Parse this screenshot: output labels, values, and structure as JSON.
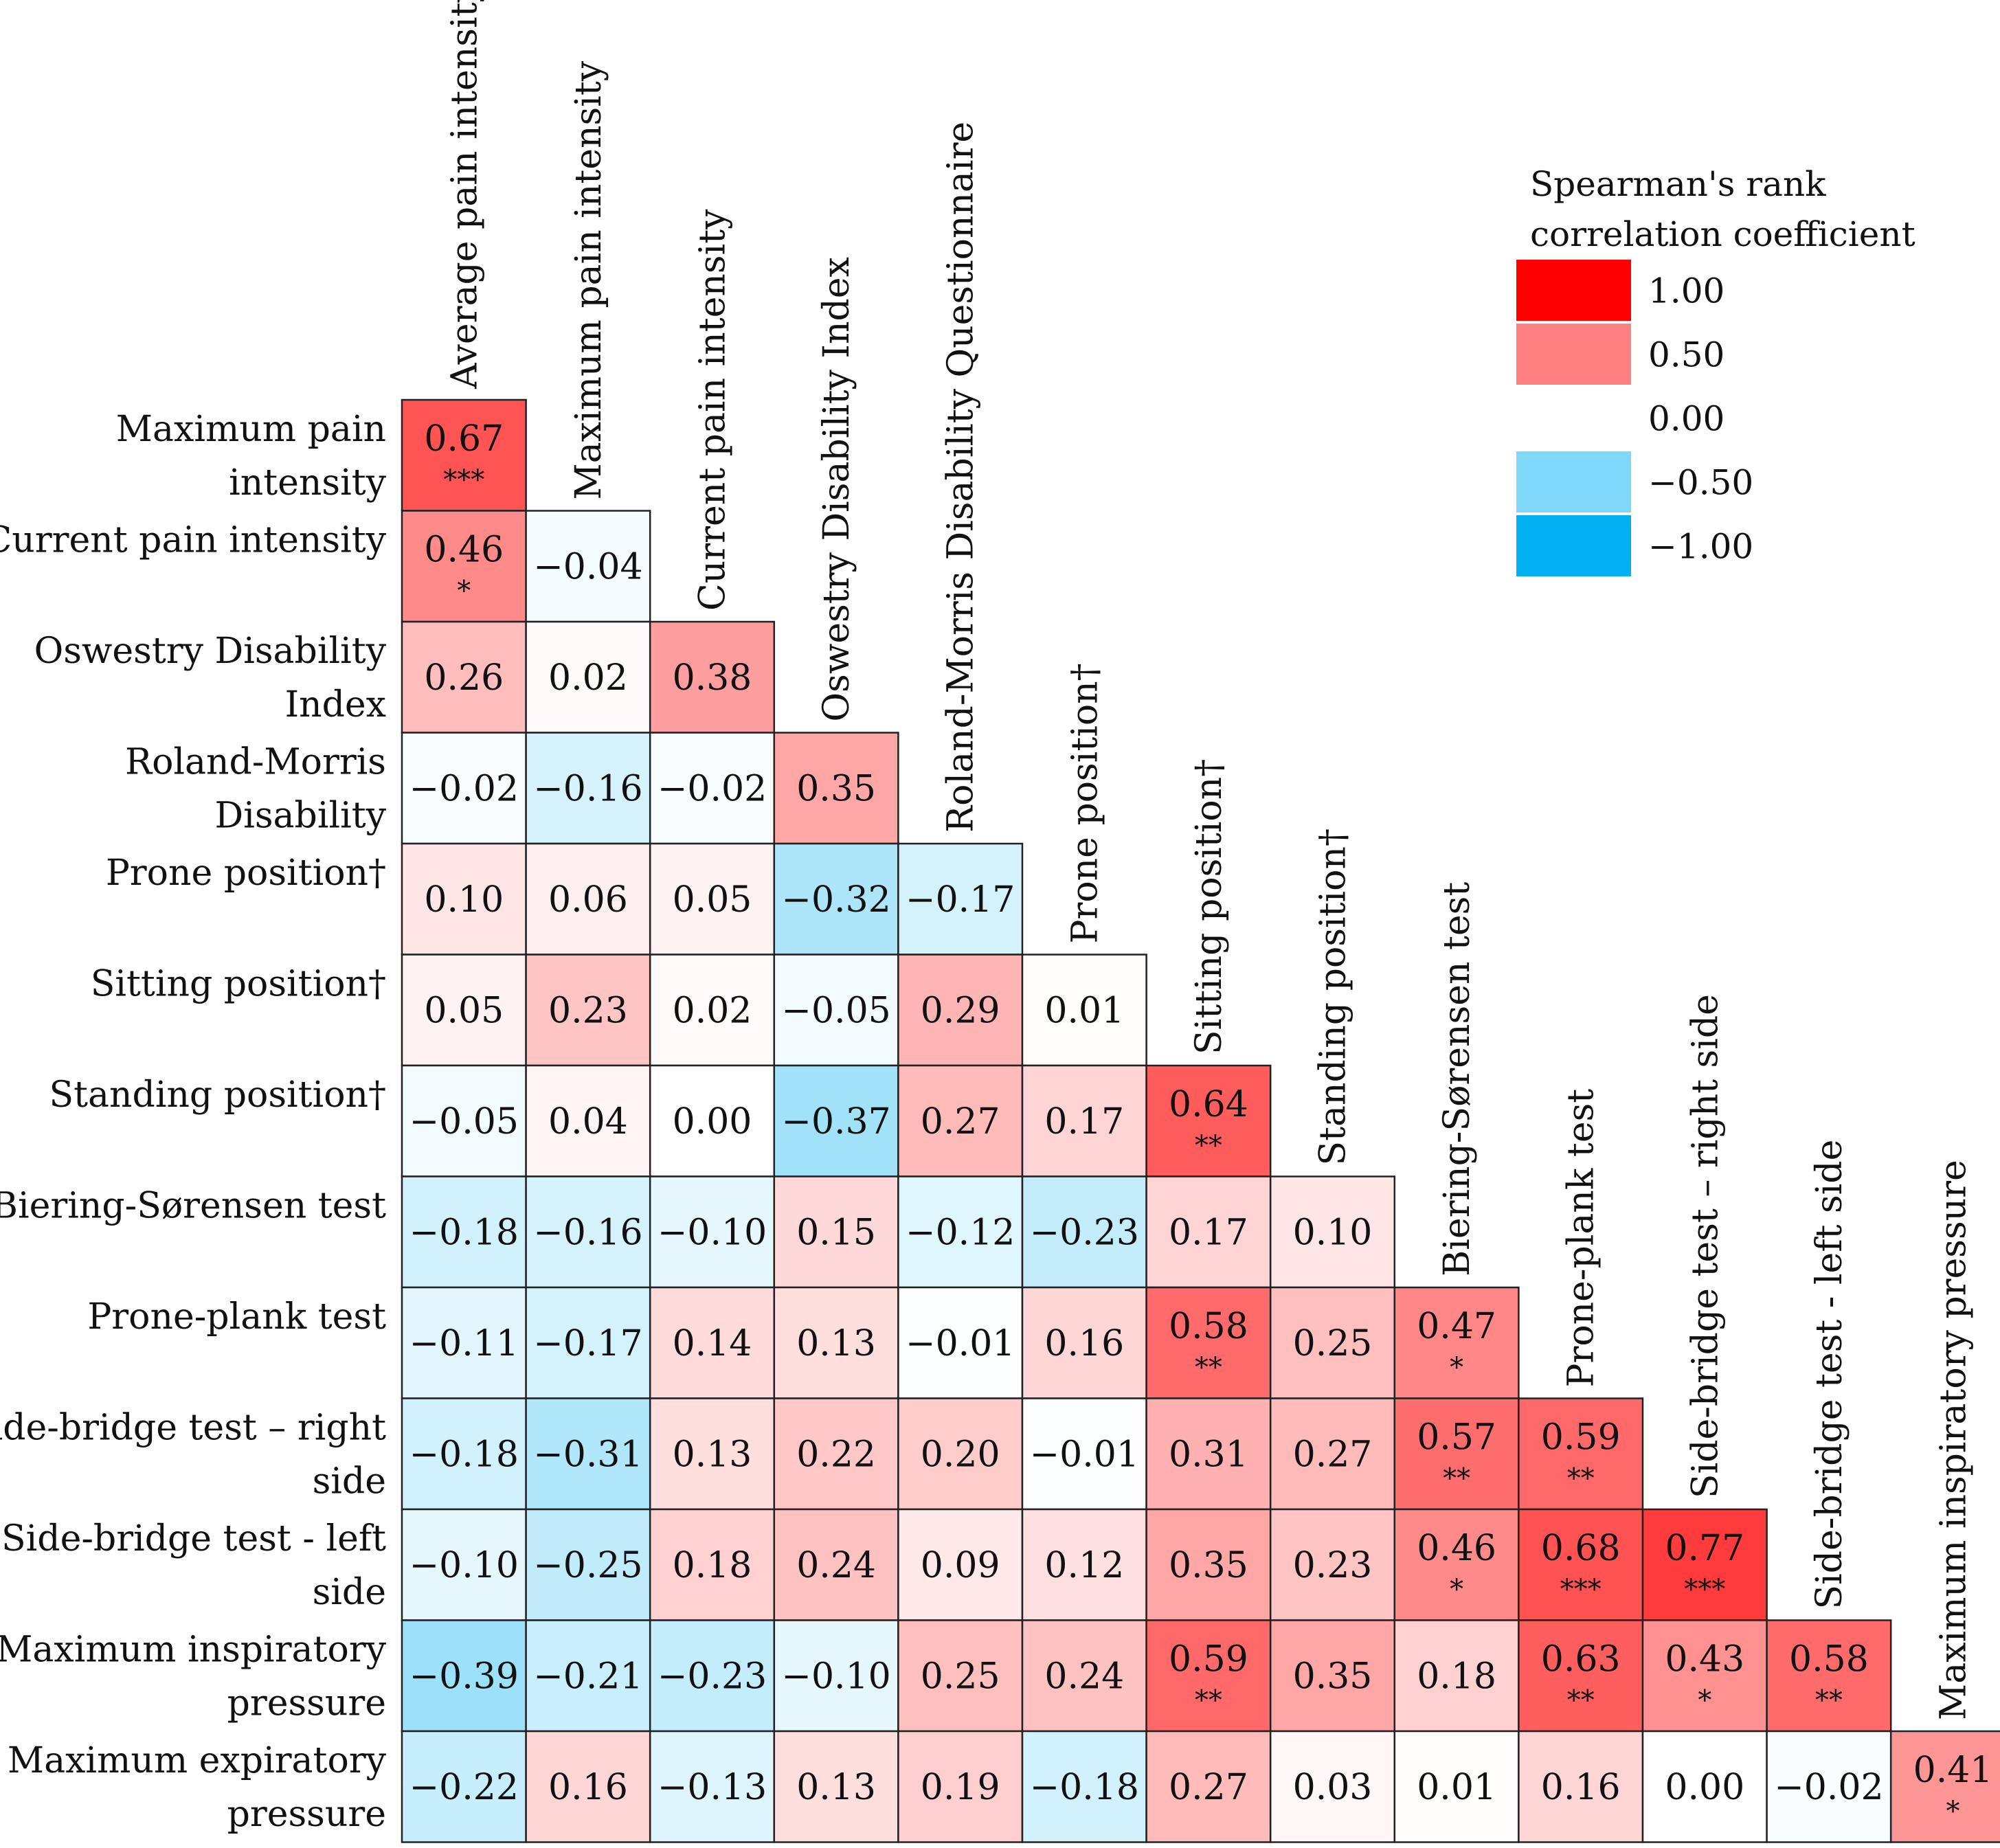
{
  "chart_data": {
    "type": "heatmap",
    "variant": "lower-triangle correlation matrix",
    "column_labels": [
      "Average pain intensity",
      "Maximum pain intensity",
      "Current pain intensity",
      "Oswestry Disability Index",
      "Roland-Morris Disability Questionnaire",
      "Prone position†",
      "Sitting position†",
      "Standing position†",
      "Biering-Sørensen test",
      "Prone-plank test",
      "Side-bridge test – right side",
      "Side-bridge test - left side",
      "Maximum inspiratory pressure"
    ],
    "row_labels": [
      "Maximum pain intensity",
      "Current pain intensity",
      "Oswestry Disability Index",
      "Roland-Morris Disability",
      "Prone position†",
      "Sitting position†",
      "Standing position†",
      "Biering-Sørensen test",
      "Prone-plank test",
      "Side-bridge test – right side",
      "Side-bridge test - left side",
      "Maximum inspiratory pressure",
      "Maximum expiratory pressure"
    ],
    "values": [
      [
        0.67
      ],
      [
        0.46,
        -0.04
      ],
      [
        0.26,
        0.02,
        0.38
      ],
      [
        -0.02,
        -0.16,
        -0.02,
        0.35
      ],
      [
        0.1,
        0.06,
        0.05,
        -0.32,
        -0.17
      ],
      [
        0.05,
        0.23,
        0.02,
        -0.05,
        0.29,
        0.01
      ],
      [
        -0.05,
        0.04,
        0.0,
        -0.37,
        0.27,
        0.17,
        0.64
      ],
      [
        -0.18,
        -0.16,
        -0.1,
        0.15,
        -0.12,
        -0.23,
        0.17,
        0.1
      ],
      [
        -0.11,
        -0.17,
        0.14,
        0.13,
        -0.01,
        0.16,
        0.58,
        0.25,
        0.47
      ],
      [
        -0.18,
        -0.31,
        0.13,
        0.22,
        0.2,
        -0.01,
        0.31,
        0.27,
        0.57,
        0.59
      ],
      [
        -0.1,
        -0.25,
        0.18,
        0.24,
        0.09,
        0.12,
        0.35,
        0.23,
        0.46,
        0.68,
        0.77
      ],
      [
        -0.39,
        -0.21,
        -0.23,
        -0.1,
        0.25,
        0.24,
        0.59,
        0.35,
        0.18,
        0.63,
        0.43,
        0.58
      ],
      [
        -0.22,
        0.16,
        -0.13,
        0.13,
        0.19,
        -0.18,
        0.27,
        0.03,
        0.01,
        0.16,
        0.0,
        -0.02,
        0.41
      ]
    ],
    "significance": [
      [
        "***"
      ],
      [
        "*",
        ""
      ],
      [
        "",
        "",
        ""
      ],
      [
        "",
        "",
        "",
        ""
      ],
      [
        "",
        "",
        "",
        "",
        ""
      ],
      [
        "",
        "",
        "",
        "",
        "",
        ""
      ],
      [
        "",
        "",
        "",
        "",
        "",
        "",
        "**"
      ],
      [
        "",
        "",
        "",
        "",
        "",
        "",
        "",
        ""
      ],
      [
        "",
        "",
        "",
        "",
        "",
        "",
        "**",
        "",
        "*"
      ],
      [
        "",
        "",
        "",
        "",
        "",
        "",
        "",
        "",
        "**",
        "**"
      ],
      [
        "",
        "",
        "",
        "",
        "",
        "",
        "",
        "",
        "*",
        "***",
        "***"
      ],
      [
        "",
        "",
        "",
        "",
        "",
        "",
        "**",
        "",
        "",
        "**",
        "*",
        "**"
      ],
      [
        "",
        "",
        "",
        "",
        "",
        "",
        "",
        "",
        "",
        "",
        "",
        "",
        "*"
      ]
    ],
    "legend": {
      "title_lines": [
        "Spearman's rank",
        "correlation coefficient"
      ],
      "placement": "top-right",
      "ticks": [
        "1.00",
        "0.50",
        "0.00",
        "−0.50",
        "−1.00"
      ],
      "tick_values": [
        1.0,
        0.5,
        0.0,
        -0.5,
        -1.0
      ]
    },
    "color_scale": {
      "negative_end": "#00b0f0",
      "zero": "#ffffff",
      "positive_end": "#ff0000",
      "range": [
        -1,
        1
      ]
    },
    "cell_border_color": "#222222",
    "grid": false
  }
}
